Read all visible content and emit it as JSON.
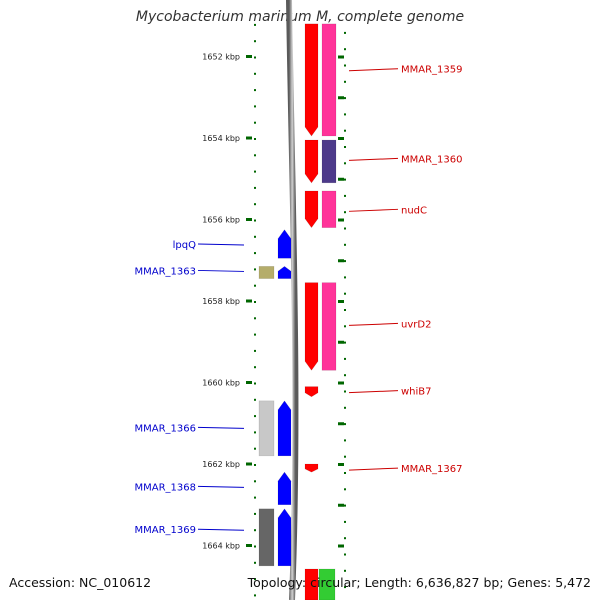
{
  "title": "Mycobacterium marinum M, complete genome",
  "footer": {
    "accession": "Accession: NC_010612",
    "summary": "Topology: circular; Length: 6,636,827 bp; Genes: 5,472"
  },
  "colors": {
    "backbone": "#808080",
    "forward_cds": "#ff0000",
    "forward_gene": "#ff3399",
    "reverse_cds": "#0000ff",
    "reverse_label": "#0000cc",
    "forward_label": "#cc0000",
    "ticks": "#006600"
  },
  "chart_data": {
    "type": "genome_map",
    "unit": "kbp",
    "position_range_kbp": [
      1651.2,
      1665.4
    ],
    "ruler": [
      {
        "kbp": 1652,
        "label": "1652 kbp"
      },
      {
        "kbp": 1654,
        "label": "1654 kbp"
      },
      {
        "kbp": 1656,
        "label": "1656 kbp"
      },
      {
        "kbp": 1658,
        "label": "1658 kbp"
      },
      {
        "kbp": 1660,
        "label": "1660 kbp"
      },
      {
        "kbp": 1662,
        "label": "1662 kbp"
      },
      {
        "kbp": 1664,
        "label": "1664 kbp"
      }
    ],
    "genes": [
      {
        "name": "MMAR_1359",
        "strand": "+",
        "start_kbp": 1651.2,
        "end_kbp": 1653.95,
        "label_kbp": 1652.3,
        "cds_color": "#ff0000",
        "gene_color": "#ff3399"
      },
      {
        "name": "MMAR_1360",
        "strand": "+",
        "start_kbp": 1654.05,
        "end_kbp": 1655.1,
        "label_kbp": 1654.5,
        "cds_color": "#ff0000",
        "gene_color": "#4d3a8a"
      },
      {
        "name": "nudC",
        "strand": "+",
        "start_kbp": 1655.3,
        "end_kbp": 1656.2,
        "label_kbp": 1655.75,
        "cds_color": "#ff0000",
        "gene_color": "#ff3399"
      },
      {
        "name": "lpqQ",
        "strand": "-",
        "start_kbp": 1656.25,
        "end_kbp": 1656.95,
        "label_kbp": 1656.6,
        "cds_color": "#0000ff"
      },
      {
        "name": "MMAR_1363",
        "strand": "-",
        "start_kbp": 1657.15,
        "end_kbp": 1657.45,
        "label_kbp": 1657.25,
        "cds_color": "#0000ff",
        "extra_color": "#b5ad6b"
      },
      {
        "name": "uvrD2",
        "strand": "+",
        "start_kbp": 1657.55,
        "end_kbp": 1659.7,
        "label_kbp": 1658.55,
        "cds_color": "#ff0000",
        "gene_color": "#ff3399"
      },
      {
        "name": "whiB7",
        "strand": "+",
        "start_kbp": 1660.1,
        "end_kbp": 1660.35,
        "label_kbp": 1660.2,
        "cds_color": "#ff0000"
      },
      {
        "name": "MMAR_1366",
        "strand": "-",
        "start_kbp": 1660.45,
        "end_kbp": 1661.8,
        "label_kbp": 1661.1,
        "cds_color": "#0000ff",
        "extra_color": "#c8c8c8"
      },
      {
        "name": "MMAR_1367",
        "strand": "+",
        "start_kbp": 1662.0,
        "end_kbp": 1662.2,
        "label_kbp": 1662.1,
        "cds_color": "#ff0000"
      },
      {
        "name": "MMAR_1368",
        "strand": "-",
        "start_kbp": 1662.2,
        "end_kbp": 1663.0,
        "label_kbp": 1662.55,
        "cds_color": "#0000ff"
      },
      {
        "name": "MMAR_1369",
        "strand": "-",
        "start_kbp": 1663.1,
        "end_kbp": 1664.5,
        "label_kbp": 1663.6,
        "cds_color": "#0000ff",
        "extra_color": "#666666"
      }
    ]
  }
}
